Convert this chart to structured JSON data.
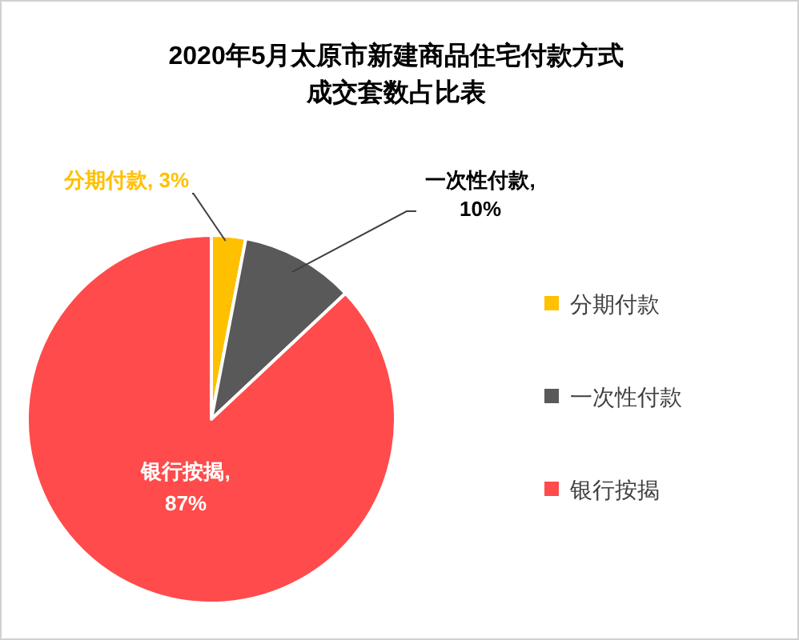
{
  "chart_data": {
    "type": "pie",
    "title": "2020年5月太原市新建商品住宅付款方式成交套数占比表",
    "categories": [
      "分期付款",
      "一次性付款",
      "银行按揭"
    ],
    "values": [
      3,
      10,
      87
    ],
    "colors": [
      "#ffc000",
      "#595959",
      "#ff4b4b"
    ],
    "value_labels": [
      "分期付款, 3%",
      "一次性付款, 10%",
      "银行按揭, 87%"
    ],
    "legend": "right"
  }
}
